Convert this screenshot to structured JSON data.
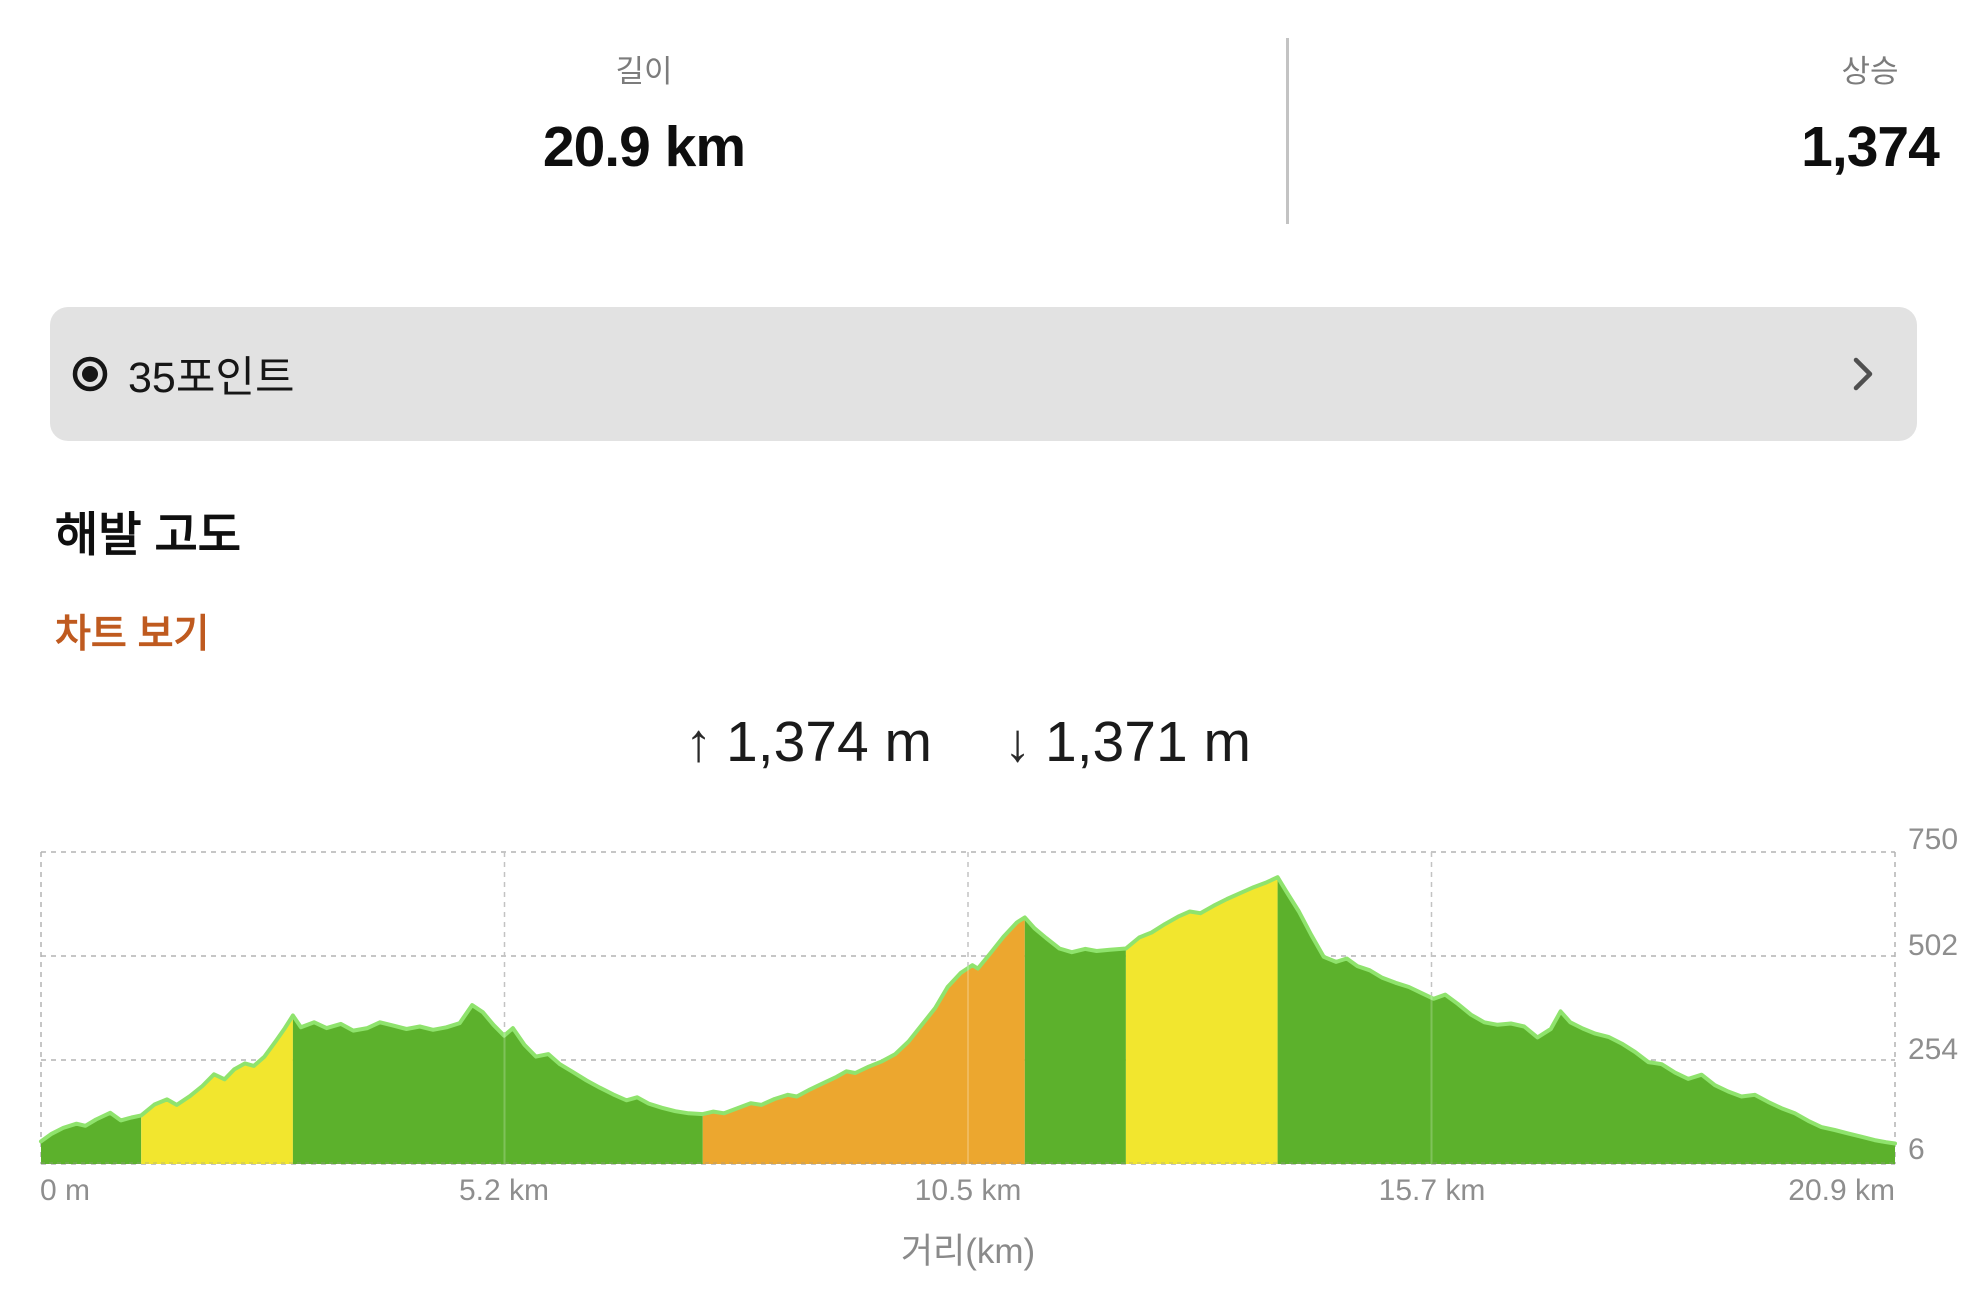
{
  "header": {
    "stats": [
      {
        "label": "길이",
        "value": "20.9 km"
      },
      {
        "label": "상승",
        "value": "1,374"
      }
    ]
  },
  "points_card": {
    "label": "35포인트",
    "icon": "target-icon",
    "chevron_icon": "chevron-right-icon"
  },
  "section": {
    "title": "해발 고도",
    "link": "차트 보기"
  },
  "elevation_summary": {
    "ascent_arrow": "↑",
    "ascent_value": "1,374 m",
    "descent_arrow": "↓",
    "descent_value": "1,371 m"
  },
  "chart_data": {
    "type": "area",
    "title": "해발 고도",
    "xlabel": "거리(km)",
    "x_ticks": [
      "0 m",
      "5.2 km",
      "10.5 km",
      "15.7 km",
      "20.9 km"
    ],
    "y_ticks": [
      750,
      502,
      254,
      6
    ],
    "xlim": [
      0,
      20.9
    ],
    "ylim": [
      6,
      750
    ],
    "grid": true,
    "legend": "none",
    "colors": {
      "green": "#5cb12c",
      "yellow": "#f2e62e",
      "orange": "#eca72f",
      "stroke": "#8fe36d"
    },
    "segments": [
      {
        "color": "green",
        "points": [
          [
            0,
            60
          ],
          [
            0.12,
            78
          ],
          [
            0.25,
            92
          ],
          [
            0.4,
            102
          ],
          [
            0.5,
            97
          ],
          [
            0.62,
            112
          ],
          [
            0.78,
            128
          ],
          [
            0.9,
            110
          ],
          [
            1.02,
            117
          ],
          [
            1.13,
            122
          ]
        ]
      },
      {
        "color": "yellow",
        "points": [
          [
            1.13,
            122
          ],
          [
            1.28,
            148
          ],
          [
            1.42,
            160
          ],
          [
            1.53,
            147
          ],
          [
            1.68,
            168
          ],
          [
            1.82,
            192
          ],
          [
            1.95,
            220
          ],
          [
            2.07,
            208
          ],
          [
            2.18,
            232
          ],
          [
            2.3,
            246
          ],
          [
            2.4,
            240
          ],
          [
            2.52,
            262
          ],
          [
            2.65,
            300
          ],
          [
            2.75,
            330
          ],
          [
            2.84,
            360
          ]
        ]
      },
      {
        "color": "green",
        "points": [
          [
            2.84,
            360
          ],
          [
            2.93,
            332
          ],
          [
            3.08,
            344
          ],
          [
            3.22,
            330
          ],
          [
            3.38,
            340
          ],
          [
            3.52,
            324
          ],
          [
            3.68,
            330
          ],
          [
            3.82,
            344
          ],
          [
            3.97,
            336
          ],
          [
            4.12,
            328
          ],
          [
            4.27,
            334
          ],
          [
            4.42,
            326
          ],
          [
            4.57,
            332
          ],
          [
            4.72,
            342
          ],
          [
            4.86,
            385
          ],
          [
            4.98,
            368
          ],
          [
            5.1,
            338
          ],
          [
            5.22,
            312
          ],
          [
            5.32,
            330
          ],
          [
            5.45,
            290
          ],
          [
            5.58,
            262
          ],
          [
            5.72,
            268
          ],
          [
            5.85,
            244
          ],
          [
            6.0,
            225
          ],
          [
            6.15,
            205
          ],
          [
            6.3,
            188
          ],
          [
            6.45,
            172
          ],
          [
            6.6,
            158
          ],
          [
            6.72,
            165
          ],
          [
            6.85,
            150
          ],
          [
            7.0,
            140
          ],
          [
            7.15,
            132
          ],
          [
            7.3,
            127
          ],
          [
            7.46,
            125
          ]
        ]
      },
      {
        "color": "orange",
        "points": [
          [
            7.46,
            125
          ],
          [
            7.58,
            131
          ],
          [
            7.7,
            127
          ],
          [
            7.85,
            139
          ],
          [
            8.0,
            151
          ],
          [
            8.12,
            147
          ],
          [
            8.27,
            161
          ],
          [
            8.42,
            171
          ],
          [
            8.52,
            167
          ],
          [
            8.67,
            184
          ],
          [
            8.82,
            199
          ],
          [
            8.97,
            214
          ],
          [
            9.08,
            227
          ],
          [
            9.18,
            223
          ],
          [
            9.33,
            238
          ],
          [
            9.48,
            251
          ],
          [
            9.63,
            268
          ],
          [
            9.78,
            298
          ],
          [
            9.93,
            338
          ],
          [
            10.08,
            378
          ],
          [
            10.22,
            428
          ],
          [
            10.37,
            462
          ],
          [
            10.5,
            480
          ],
          [
            10.56,
            472
          ],
          [
            10.7,
            508
          ],
          [
            10.85,
            548
          ],
          [
            11.0,
            582
          ],
          [
            11.09,
            594
          ]
        ]
      },
      {
        "color": "green",
        "points": [
          [
            11.09,
            594
          ],
          [
            11.2,
            568
          ],
          [
            11.33,
            545
          ],
          [
            11.48,
            520
          ],
          [
            11.62,
            511
          ],
          [
            11.77,
            519
          ],
          [
            11.9,
            514
          ],
          [
            12.05,
            517
          ],
          [
            12.23,
            520
          ]
        ]
      },
      {
        "color": "yellow",
        "points": [
          [
            12.23,
            520
          ],
          [
            12.38,
            546
          ],
          [
            12.52,
            558
          ],
          [
            12.67,
            578
          ],
          [
            12.82,
            596
          ],
          [
            12.95,
            608
          ],
          [
            13.07,
            604
          ],
          [
            13.22,
            622
          ],
          [
            13.37,
            638
          ],
          [
            13.52,
            652
          ],
          [
            13.67,
            666
          ],
          [
            13.82,
            678
          ],
          [
            13.94,
            690
          ]
        ]
      },
      {
        "color": "green",
        "points": [
          [
            13.94,
            690
          ],
          [
            14.05,
            652
          ],
          [
            14.18,
            608
          ],
          [
            14.32,
            552
          ],
          [
            14.46,
            500
          ],
          [
            14.6,
            488
          ],
          [
            14.72,
            496
          ],
          [
            14.84,
            478
          ],
          [
            14.98,
            468
          ],
          [
            15.12,
            450
          ],
          [
            15.27,
            438
          ],
          [
            15.42,
            428
          ],
          [
            15.56,
            414
          ],
          [
            15.7,
            400
          ],
          [
            15.83,
            410
          ],
          [
            15.97,
            388
          ],
          [
            16.12,
            362
          ],
          [
            16.27,
            344
          ],
          [
            16.42,
            338
          ],
          [
            16.57,
            341
          ],
          [
            16.72,
            334
          ],
          [
            16.87,
            308
          ],
          [
            17.02,
            328
          ],
          [
            17.13,
            370
          ],
          [
            17.24,
            344
          ],
          [
            17.38,
            329
          ],
          [
            17.52,
            317
          ],
          [
            17.67,
            309
          ],
          [
            17.82,
            293
          ],
          [
            17.97,
            273
          ],
          [
            18.12,
            249
          ],
          [
            18.27,
            244
          ],
          [
            18.42,
            224
          ],
          [
            18.57,
            209
          ],
          [
            18.72,
            219
          ],
          [
            18.87,
            194
          ],
          [
            19.02,
            179
          ],
          [
            19.17,
            167
          ],
          [
            19.32,
            171
          ],
          [
            19.47,
            154
          ],
          [
            19.62,
            139
          ],
          [
            19.77,
            127
          ],
          [
            19.92,
            109
          ],
          [
            20.07,
            94
          ],
          [
            20.22,
            87
          ],
          [
            20.37,
            79
          ],
          [
            20.52,
            71
          ],
          [
            20.67,
            63
          ],
          [
            20.8,
            58
          ],
          [
            20.9,
            55
          ]
        ]
      }
    ]
  }
}
